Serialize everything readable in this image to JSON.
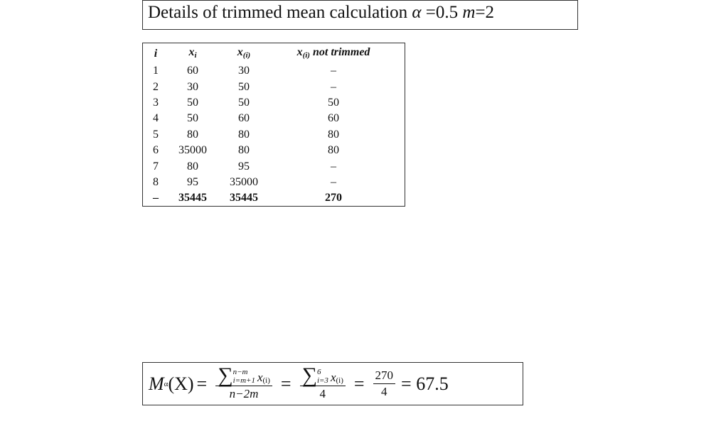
{
  "header": {
    "title": {
      "text": "Details of trimmed mean calculation",
      "alpha": "α",
      "alpha_value": "=0.5",
      "m": "m",
      "m_value": "=2"
    }
  },
  "table": {
    "headers": [
      {
        "text": "i"
      },
      {
        "text": "x",
        "sub": "i"
      },
      {
        "text": "x",
        "sub": "(i)"
      },
      {
        "text": "x",
        "sub": "(i)",
        "suffix": "not trimmed"
      }
    ],
    "rows": [
      [
        "1",
        "60",
        "30",
        "–"
      ],
      [
        "2",
        "30",
        "50",
        "–"
      ],
      [
        "3",
        "50",
        "50",
        "50"
      ],
      [
        "4",
        "50",
        "60",
        "60"
      ],
      [
        "5",
        "80",
        "80",
        "80"
      ],
      [
        "6",
        "35000",
        "80",
        "80"
      ],
      [
        "7",
        "80",
        "95",
        "–"
      ],
      [
        "8",
        "95",
        "35000",
        "–"
      ]
    ],
    "totals": [
      "–",
      "35445",
      "35445",
      "270"
    ]
  },
  "formula": {
    "lhs": "M",
    "lhs_sub": "α",
    "lhs_arg": "(X)",
    "eq1": "=",
    "sum1_upper": "n−m",
    "sum1_lower": "i=m+1",
    "term1": "x",
    "term1_sub": "(i)",
    "den1": "n−2m",
    "eq2": "=",
    "sum2_upper": "6",
    "sum2_lower": "i=3",
    "term2": "x",
    "term2_sub": "(i)",
    "den2": "4",
    "eq3": "=",
    "num3": "270",
    "den3": "4",
    "result": "= 67.5",
    "sum_symbol": "∑"
  }
}
